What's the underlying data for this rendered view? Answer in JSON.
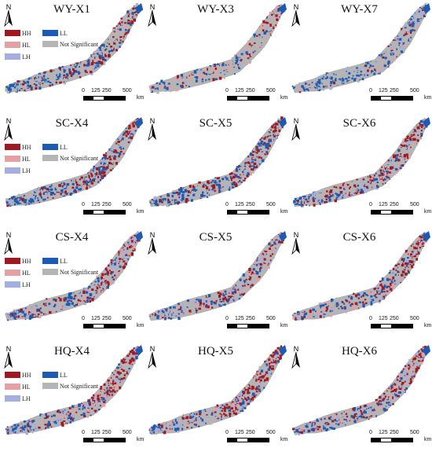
{
  "colors": {
    "HH": "#9e1a22",
    "HL": "#e3a1a3",
    "LH": "#a4aee0",
    "LL": "#1b5bb3",
    "NS": "#b5b5b5"
  },
  "north_label": "N",
  "legend": {
    "HH": "HH",
    "HL": "HL",
    "LH": "LH",
    "LL": "LL",
    "NS": "Not Significant"
  },
  "scale": {
    "ticks": [
      "0",
      "125",
      "250",
      "500"
    ],
    "unit": "km"
  },
  "panels": [
    {
      "title": "WY-X1",
      "legend": true,
      "scale": true,
      "mix": {
        "HH": 0.22,
        "HL": 0.08,
        "LH": 0.06,
        "LL": 0.3,
        "NS": 0.34
      }
    },
    {
      "title": "WY-X3",
      "legend": false,
      "scale": true,
      "mix": {
        "HH": 0.12,
        "HL": 0.22,
        "LH": 0.05,
        "LL": 0.2,
        "NS": 0.41
      }
    },
    {
      "title": "WY-X7",
      "legend": false,
      "scale": true,
      "mix": {
        "HH": 0.04,
        "HL": 0.06,
        "LH": 0.14,
        "LL": 0.34,
        "NS": 0.42
      }
    },
    {
      "title": "SC-X4",
      "legend": true,
      "scale": true,
      "mix": {
        "HH": 0.3,
        "HL": 0.1,
        "LH": 0.08,
        "LL": 0.32,
        "NS": 0.2
      }
    },
    {
      "title": "SC-X5",
      "legend": false,
      "scale": true,
      "mix": {
        "HH": 0.28,
        "HL": 0.12,
        "LH": 0.1,
        "LL": 0.3,
        "NS": 0.2
      }
    },
    {
      "title": "SC-X6",
      "legend": false,
      "scale": true,
      "mix": {
        "HH": 0.3,
        "HL": 0.14,
        "LH": 0.14,
        "LL": 0.27,
        "NS": 0.15
      }
    },
    {
      "title": "CS-X4",
      "legend": true,
      "scale": true,
      "mix": {
        "HH": 0.22,
        "HL": 0.18,
        "LH": 0.22,
        "LL": 0.24,
        "NS": 0.14
      }
    },
    {
      "title": "CS-X5",
      "legend": false,
      "scale": true,
      "mix": {
        "HH": 0.22,
        "HL": 0.18,
        "LH": 0.22,
        "LL": 0.24,
        "NS": 0.14
      }
    },
    {
      "title": "CS-X6",
      "legend": false,
      "scale": true,
      "mix": {
        "HH": 0.28,
        "HL": 0.18,
        "LH": 0.18,
        "LL": 0.22,
        "NS": 0.14
      }
    },
    {
      "title": "HQ-X4",
      "legend": true,
      "scale": true,
      "mix": {
        "HH": 0.3,
        "HL": 0.2,
        "LH": 0.18,
        "LL": 0.2,
        "NS": 0.12
      }
    },
    {
      "title": "HQ-X5",
      "legend": false,
      "scale": true,
      "mix": {
        "HH": 0.3,
        "HL": 0.2,
        "LH": 0.18,
        "LL": 0.2,
        "NS": 0.12
      }
    },
    {
      "title": "HQ-X6",
      "legend": false,
      "scale": true,
      "mix": {
        "HH": 0.3,
        "HL": 0.2,
        "LH": 0.18,
        "LL": 0.2,
        "NS": 0.12
      }
    }
  ]
}
